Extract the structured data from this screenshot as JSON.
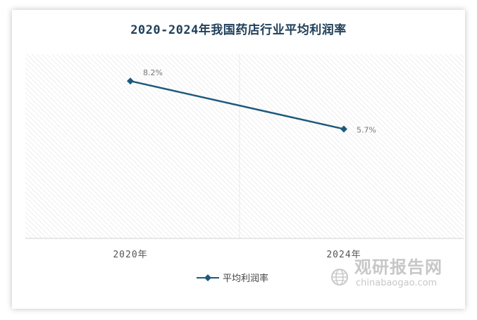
{
  "chart_data": {
    "type": "line",
    "title": "2020-2024年我国药店行业平均利润率",
    "categories": [
      "2020年",
      "2024年"
    ],
    "series": [
      {
        "name": "平均利润率",
        "values": [
          8.2,
          5.7
        ],
        "labels": [
          "8.2%",
          "5.7%"
        ],
        "color": "#1e5a7d"
      }
    ],
    "xlabel": "",
    "ylabel": "",
    "ylim": [
      0,
      9.6
    ],
    "grid": false,
    "legend": "bottom-center"
  },
  "watermark": {
    "cn": "观研报告网",
    "en": "chinabaogao.com",
    "logo": "globe-logo-icon"
  }
}
